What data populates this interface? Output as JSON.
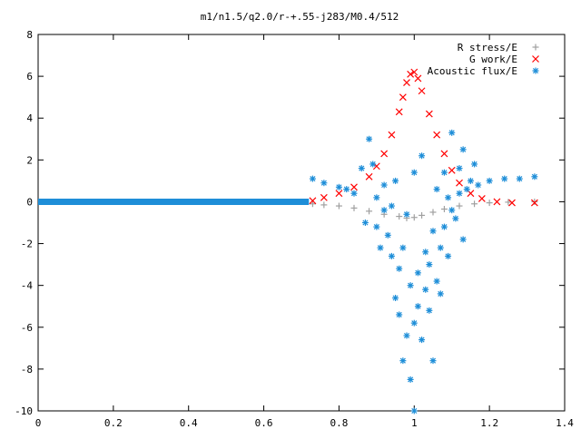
{
  "chart_data": {
    "type": "scatter",
    "title": "m1/n1.5/q2.0/r-+.55-j283/M0.4/512",
    "xlabel": "",
    "ylabel": "",
    "xlim": [
      0,
      1.4
    ],
    "ylim": [
      -10,
      8
    ],
    "x_ticks": [
      "0",
      "0.2",
      "0.4",
      "0.6",
      "0.8",
      "1",
      "1.2",
      "1.4"
    ],
    "y_ticks": [
      "-10",
      "-8",
      "-6",
      "-4",
      "-2",
      "0",
      "2",
      "4",
      "6",
      "8"
    ],
    "legend_position": "top-right",
    "grid": false,
    "series": [
      {
        "name": "R stress/E",
        "marker": "plus",
        "color": "#a0a0a0",
        "points": [
          [
            0.73,
            -0.1
          ],
          [
            0.76,
            -0.15
          ],
          [
            0.8,
            -0.2
          ],
          [
            0.84,
            -0.3
          ],
          [
            0.88,
            -0.45
          ],
          [
            0.92,
            -0.6
          ],
          [
            0.96,
            -0.7
          ],
          [
            0.98,
            -0.78
          ],
          [
            1.0,
            -0.75
          ],
          [
            1.02,
            -0.65
          ],
          [
            1.05,
            -0.5
          ],
          [
            1.08,
            -0.35
          ],
          [
            1.12,
            -0.2
          ],
          [
            1.16,
            -0.1
          ],
          [
            1.2,
            -0.05
          ],
          [
            1.25,
            -0.02
          ],
          [
            1.32,
            0.0
          ]
        ]
      },
      {
        "name": "G work/E",
        "marker": "cross",
        "color": "#ff0000",
        "points": [
          [
            0.73,
            0.05
          ],
          [
            0.76,
            0.2
          ],
          [
            0.8,
            0.4
          ],
          [
            0.84,
            0.7
          ],
          [
            0.88,
            1.2
          ],
          [
            0.9,
            1.7
          ],
          [
            0.92,
            2.3
          ],
          [
            0.94,
            3.2
          ],
          [
            0.96,
            4.3
          ],
          [
            0.97,
            5.0
          ],
          [
            0.98,
            5.7
          ],
          [
            0.99,
            6.1
          ],
          [
            1.0,
            6.2
          ],
          [
            1.01,
            5.9
          ],
          [
            1.02,
            5.3
          ],
          [
            1.04,
            4.2
          ],
          [
            1.06,
            3.2
          ],
          [
            1.08,
            2.3
          ],
          [
            1.1,
            1.5
          ],
          [
            1.12,
            0.9
          ],
          [
            1.15,
            0.4
          ],
          [
            1.18,
            0.15
          ],
          [
            1.22,
            0.0
          ],
          [
            1.26,
            -0.05
          ],
          [
            1.32,
            -0.05
          ]
        ]
      },
      {
        "name": "Acoustic flux/E",
        "marker": "star",
        "color": "#1e8ed8",
        "baseline": {
          "from": 0.0,
          "to": 0.72,
          "value": 0.0
        },
        "points": [
          [
            0.73,
            1.1
          ],
          [
            0.76,
            0.9
          ],
          [
            0.8,
            0.7
          ],
          [
            0.82,
            0.6
          ],
          [
            0.84,
            0.4
          ],
          [
            0.86,
            1.6
          ],
          [
            0.87,
            -1.0
          ],
          [
            0.88,
            3.0
          ],
          [
            0.89,
            1.8
          ],
          [
            0.9,
            -1.2
          ],
          [
            0.9,
            0.2
          ],
          [
            0.91,
            -2.2
          ],
          [
            0.92,
            -0.4
          ],
          [
            0.92,
            0.8
          ],
          [
            0.93,
            -1.6
          ],
          [
            0.94,
            -2.6
          ],
          [
            0.94,
            -0.2
          ],
          [
            0.95,
            -4.6
          ],
          [
            0.95,
            1.0
          ],
          [
            0.96,
            -3.2
          ],
          [
            0.96,
            -5.4
          ],
          [
            0.97,
            -7.6
          ],
          [
            0.97,
            -2.2
          ],
          [
            0.98,
            -6.4
          ],
          [
            0.98,
            -0.6
          ],
          [
            0.99,
            -4.0
          ],
          [
            0.99,
            -8.5
          ],
          [
            1.0,
            -5.8
          ],
          [
            1.0,
            1.4
          ],
          [
            1.0,
            -10.0
          ],
          [
            1.01,
            -3.4
          ],
          [
            1.01,
            -5.0
          ],
          [
            1.02,
            2.2
          ],
          [
            1.02,
            -6.6
          ],
          [
            1.03,
            -4.2
          ],
          [
            1.03,
            -2.4
          ],
          [
            1.04,
            -3.0
          ],
          [
            1.04,
            -5.2
          ],
          [
            1.05,
            -1.4
          ],
          [
            1.05,
            -7.6
          ],
          [
            1.06,
            -3.8
          ],
          [
            1.06,
            0.6
          ],
          [
            1.07,
            -2.2
          ],
          [
            1.07,
            -4.4
          ],
          [
            1.08,
            1.4
          ],
          [
            1.08,
            -1.2
          ],
          [
            1.09,
            -2.6
          ],
          [
            1.09,
            0.2
          ],
          [
            1.1,
            -0.4
          ],
          [
            1.1,
            3.3
          ],
          [
            1.11,
            -0.8
          ],
          [
            1.12,
            1.6
          ],
          [
            1.12,
            0.4
          ],
          [
            1.13,
            2.5
          ],
          [
            1.13,
            -1.8
          ],
          [
            1.14,
            0.6
          ],
          [
            1.15,
            1.0
          ],
          [
            1.16,
            1.8
          ],
          [
            1.17,
            0.8
          ],
          [
            1.2,
            1.0
          ],
          [
            1.24,
            1.1
          ],
          [
            1.28,
            1.1
          ],
          [
            1.32,
            1.2
          ]
        ]
      }
    ]
  }
}
